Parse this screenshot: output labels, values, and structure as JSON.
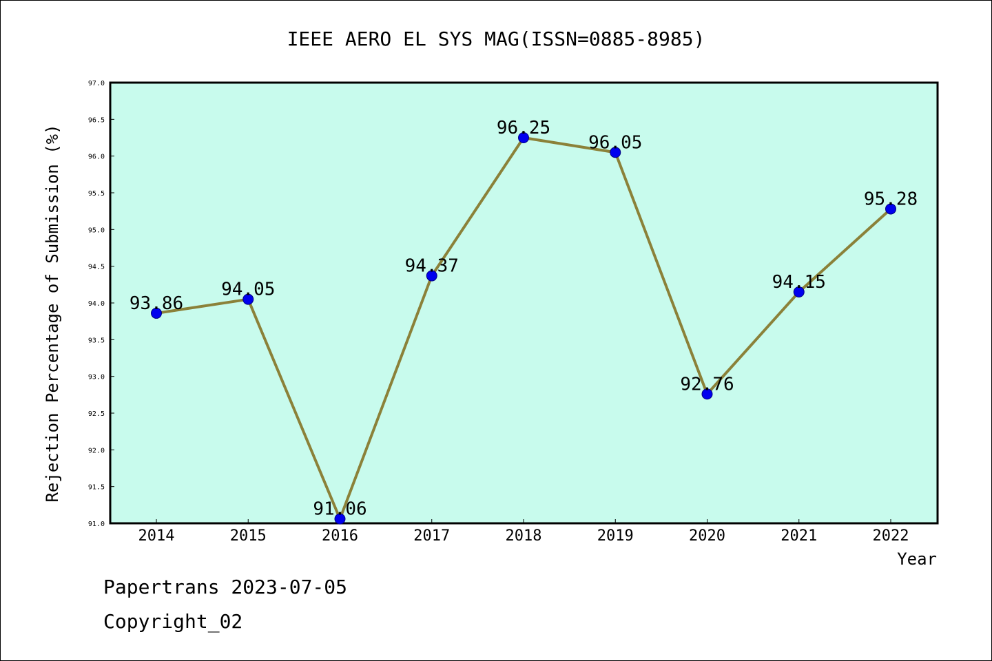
{
  "chart_data": {
    "type": "line",
    "title": "IEEE AERO EL SYS MAG(ISSN=0885-8985)",
    "xlabel": "Year",
    "ylabel": "Rejection Percentage of Submission (%)",
    "categories": [
      "2014",
      "2015",
      "2016",
      "2017",
      "2018",
      "2019",
      "2020",
      "2021",
      "2022"
    ],
    "values": [
      93.86,
      94.05,
      91.06,
      94.37,
      96.25,
      96.05,
      92.76,
      94.15,
      95.28
    ],
    "data_labels": [
      "93.86",
      "94.05",
      "91.06",
      "94.37",
      "96.25",
      "96.05",
      "92.76",
      "94.15",
      "95.28"
    ],
    "ylim": [
      91.0,
      97.0
    ],
    "yticks": [
      "91.0",
      "91.5",
      "92.0",
      "92.5",
      "93.0",
      "93.5",
      "94.0",
      "94.5",
      "95.0",
      "95.5",
      "96.0",
      "96.5",
      "97.0"
    ],
    "grid": false,
    "colors": {
      "plot_background": "#c8fbed",
      "line": "#8b8139",
      "marker": "#0000ee",
      "axis": "#000000"
    }
  },
  "footer": {
    "line1": "Papertrans 2023-07-05",
    "line2": "Copyright_02"
  }
}
